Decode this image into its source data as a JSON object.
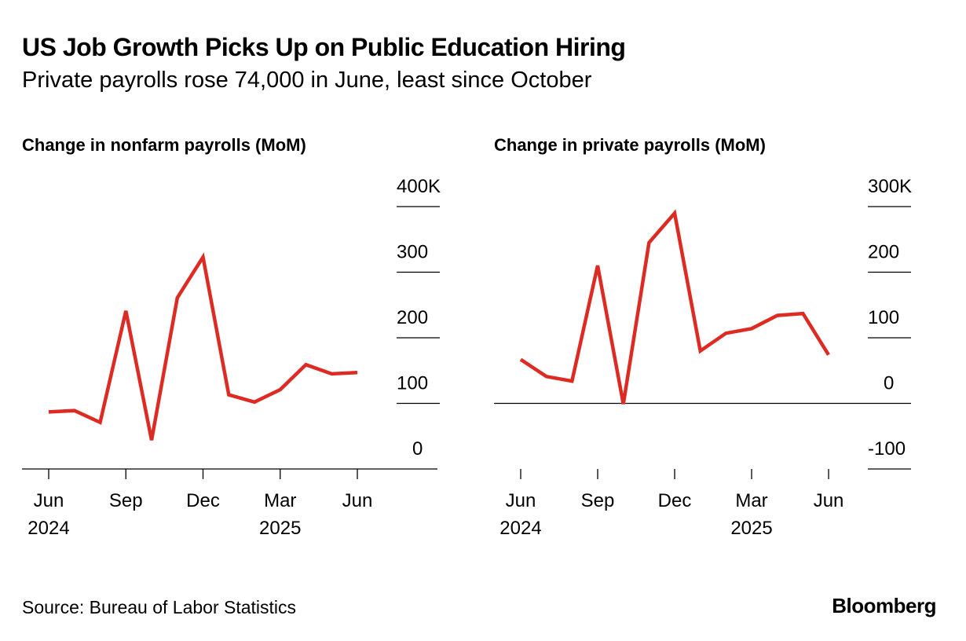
{
  "title": "US Job Growth Picks Up on Public Education Hiring",
  "subtitle": "Private payrolls rose 74,000 in June, least since October",
  "source": "Source: Bureau of Labor Statistics",
  "brand": "Bloomberg",
  "colors": {
    "line": "#dd2b23",
    "axis": "#000000"
  },
  "chart_data": [
    {
      "type": "line",
      "title": "Change in nonfarm payrolls (MoM)",
      "x": [
        "Jun 2024",
        "Jul 2024",
        "Aug 2024",
        "Sep 2024",
        "Oct 2024",
        "Nov 2024",
        "Dec 2024",
        "Jan 2025",
        "Feb 2025",
        "Mar 2025",
        "Apr 2025",
        "May 2025",
        "Jun 2025"
      ],
      "values": [
        87,
        89,
        71,
        241,
        44,
        261,
        323,
        113,
        102,
        121,
        159,
        145,
        147
      ],
      "ylim": [
        0,
        400
      ],
      "yticks": [
        0,
        100,
        200,
        300,
        400
      ],
      "ytick_labels": [
        "0",
        "100",
        "200",
        "300",
        "400K"
      ],
      "xtick_labels": [
        {
          "idx": 0,
          "label": "Jun",
          "sub": "2024"
        },
        {
          "idx": 3,
          "label": "Sep"
        },
        {
          "idx": 6,
          "label": "Dec"
        },
        {
          "idx": 9,
          "label": "Mar",
          "sub": "2025"
        },
        {
          "idx": 12,
          "label": "Jun"
        }
      ]
    },
    {
      "type": "line",
      "title": "Change in private payrolls (MoM)",
      "x": [
        "Jun 2024",
        "Jul 2024",
        "Aug 2024",
        "Sep 2024",
        "Oct 2024",
        "Nov 2024",
        "Dec 2024",
        "Jan 2025",
        "Feb 2025",
        "Mar 2025",
        "Apr 2025",
        "May 2025",
        "Jun 2025"
      ],
      "values": [
        67,
        41,
        34,
        210,
        -1,
        245,
        290,
        80,
        107,
        114,
        134,
        137,
        74
      ],
      "ylim": [
        -100,
        300
      ],
      "yticks": [
        -100,
        0,
        100,
        200,
        300
      ],
      "ytick_labels": [
        "-100",
        "0",
        "100",
        "200",
        "300K"
      ],
      "xtick_labels": [
        {
          "idx": 0,
          "label": "Jun",
          "sub": "2024"
        },
        {
          "idx": 3,
          "label": "Sep"
        },
        {
          "idx": 6,
          "label": "Dec"
        },
        {
          "idx": 9,
          "label": "Mar",
          "sub": "2025"
        },
        {
          "idx": 12,
          "label": "Jun"
        }
      ]
    }
  ]
}
